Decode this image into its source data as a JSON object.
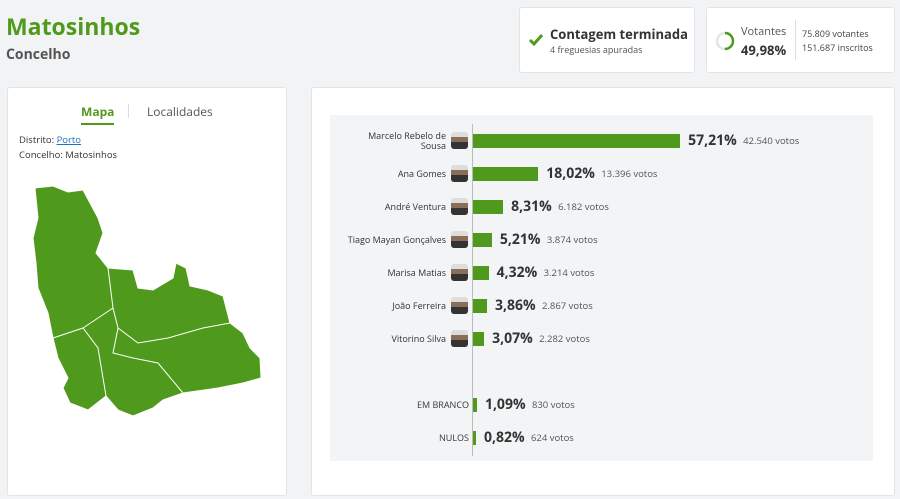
{
  "header": {
    "title": "Matosinhos",
    "subtitle": "Concelho"
  },
  "status": {
    "title": "Contagem terminada",
    "detail": "4 freguesias apuradas"
  },
  "turnout": {
    "label": "Votantes",
    "value": 49.98,
    "value_label": "49,98%",
    "voters": "75.809 votantes",
    "registered": "151.687 inscritos"
  },
  "tabs": [
    "Mapa",
    "Localidades"
  ],
  "location": {
    "district_label": "Distrito:",
    "district": "Porto",
    "county_label": "Concelho:",
    "county": "Matosinhos"
  },
  "chart_data": {
    "type": "bar",
    "orientation": "horizontal",
    "color": "#4f9a1c",
    "categories": [
      "Marcelo Rebelo de Sousa",
      "Ana Gomes",
      "André Ventura",
      "Tiago Mayan Gonçalves",
      "Marisa Matias",
      "João Ferreira",
      "Vitorino Silva",
      "EM BRANCO",
      "NULOS"
    ],
    "values": [
      57.21,
      18.02,
      8.31,
      5.21,
      4.32,
      3.86,
      3.07,
      1.09,
      0.82
    ],
    "value_labels": [
      "57,21%",
      "18,02%",
      "8,31%",
      "5,21%",
      "4,32%",
      "3,86%",
      "3,07%",
      "1,09%",
      "0,82%"
    ],
    "vote_labels": [
      "42.540 votos",
      "13.396 votos",
      "6.182 votos",
      "3.874 votos",
      "3.214 votos",
      "2.867 votos",
      "2.282 votos",
      "830 votos",
      "624 votos"
    ]
  }
}
